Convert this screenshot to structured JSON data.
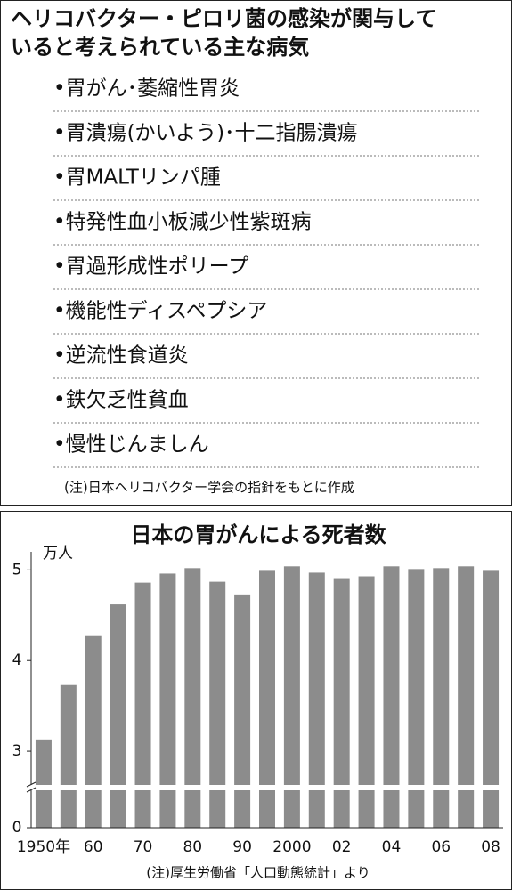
{
  "list": {
    "title_lines": [
      "ヘリコバクター・ピロリ菌の感染が関与して",
      "いると考えられている主な病気"
    ],
    "items": [
      "•胃がん･萎縮性胃炎",
      "•胃潰瘍(かいよう)･十二指腸潰瘍",
      "•胃MALTリンパ腫",
      "•特発性血小板減少性紫斑病",
      "•胃過形成性ポリープ",
      "•機能性ディスペプシア",
      "•逆流性食道炎",
      "•鉄欠乏性貧血",
      "•慢性じんましん"
    ],
    "note": "(注)日本ヘリコバクター学会の指針をもとに作成"
  },
  "chart_data": {
    "type": "bar",
    "title": "日本の胃がんによる死者数",
    "y_unit": "万人",
    "categories": [
      "1950年",
      null,
      "60",
      null,
      "70",
      null,
      "80",
      null,
      "90",
      null,
      "2000",
      null,
      "02",
      null,
      "04",
      null,
      "06",
      null,
      "08"
    ],
    "values": [
      3.13,
      3.73,
      4.27,
      4.62,
      4.86,
      4.96,
      5.02,
      4.87,
      4.73,
      4.99,
      5.04,
      4.97,
      4.9,
      4.93,
      5.04,
      5.01,
      5.02,
      5.04,
      4.99
    ],
    "color": "#8c8c8c",
    "ylim": [
      0,
      5.2
    ],
    "yticks": [
      0,
      3,
      4,
      5
    ],
    "y_break": [
      0.3,
      2.5
    ],
    "note": "(注)厚生労働省「人口動態統計」より"
  }
}
